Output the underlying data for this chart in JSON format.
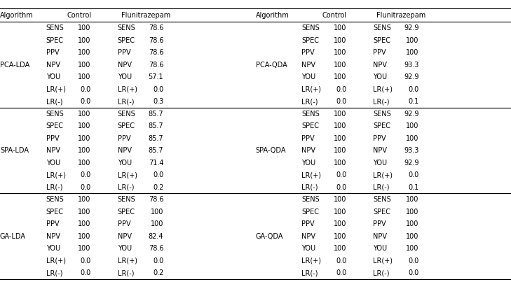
{
  "metrics": [
    "SENS",
    "SPEC",
    "PPV",
    "NPV",
    "YOU",
    "LR(+)",
    "LR(-)"
  ],
  "rows": [
    {
      "algorithm": "PCA-LDA",
      "control": [
        "100",
        "100",
        "100",
        "100",
        "100",
        "0.0",
        "0.0"
      ],
      "flunitrazepam": [
        "78.6",
        "78.6",
        "78.6",
        "78.6",
        "57.1",
        "0.0",
        "0.3"
      ]
    },
    {
      "algorithm": "SPA-LDA",
      "control": [
        "100",
        "100",
        "100",
        "100",
        "100",
        "0.0",
        "0.0"
      ],
      "flunitrazepam": [
        "85.7",
        "85.7",
        "85.7",
        "85.7",
        "71.4",
        "0.0",
        "0.2"
      ]
    },
    {
      "algorithm": "GA-LDA",
      "control": [
        "100",
        "100",
        "100",
        "100",
        "100",
        "0.0",
        "0.0"
      ],
      "flunitrazepam": [
        "78.6",
        "100",
        "100",
        "82.4",
        "78.6",
        "0.0",
        "0.2"
      ]
    },
    {
      "algorithm": "PCA-QDA",
      "control": [
        "100",
        "100",
        "100",
        "100",
        "100",
        "0.0",
        "0.0"
      ],
      "flunitrazepam": [
        "92.9",
        "100",
        "100",
        "93.3",
        "92.9",
        "0.0",
        "0.1"
      ]
    },
    {
      "algorithm": "SPA-QDA",
      "control": [
        "100",
        "100",
        "100",
        "100",
        "100",
        "0.0",
        "0.0"
      ],
      "flunitrazepam": [
        "92.9",
        "100",
        "100",
        "93.3",
        "92.9",
        "0.0",
        "0.1"
      ]
    },
    {
      "algorithm": "GA-QDA",
      "control": [
        "100",
        "100",
        "100",
        "100",
        "100",
        "0.0",
        "0.0"
      ],
      "flunitrazepam": [
        "100",
        "100",
        "100",
        "100",
        "100",
        "0.0",
        "0.0"
      ]
    }
  ],
  "fontsize": 7.0,
  "bg_color": "#ffffff",
  "text_color": "#000000",
  "line_color": "#000000",
  "col_x": {
    "L_alg": 0.0,
    "L_metric": 0.09,
    "L_ctrl": 0.178,
    "L_fmet": 0.23,
    "L_fval": 0.32,
    "R_alg": 0.5,
    "R_metric": 0.59,
    "R_ctrl": 0.678,
    "R_fmet": 0.73,
    "R_fval": 0.82
  },
  "header_ctrl_L": 0.155,
  "header_flu_L": 0.285,
  "header_ctrl_R": 0.655,
  "header_flu_R": 0.785
}
